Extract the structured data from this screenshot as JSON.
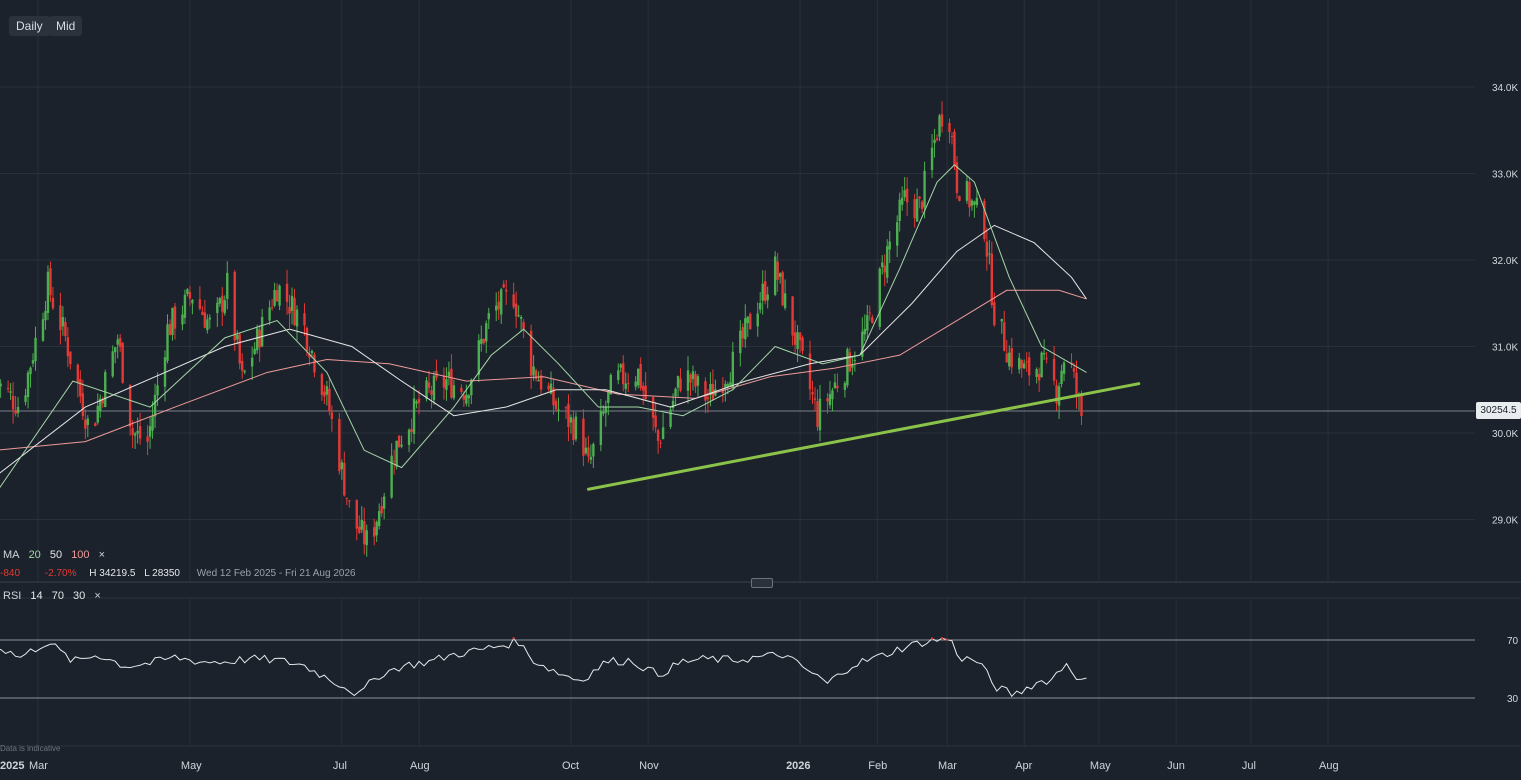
{
  "toolbar": {
    "interval": "Daily",
    "price_type": "Mid"
  },
  "legend": {
    "ma_label": "MA",
    "ma20": "20",
    "ma50": "50",
    "ma100": "100",
    "close": "×",
    "change": "-840",
    "change_pct": "-2.70%",
    "high": "H 34219.5",
    "low": "L 28350",
    "range": "Wed 12 Feb 2025 - Fri 21 Aug 2026"
  },
  "rsi_legend": {
    "label": "RSI",
    "period": "14",
    "upper": "70",
    "lower": "30",
    "close": "×"
  },
  "last_price": "30254.5",
  "disclaimer": "Data is indicative",
  "colors": {
    "up": "#4caf50",
    "down": "#e53935",
    "ma20": "#a5d6a7",
    "ma50": "#e6e6e6",
    "ma100": "#ef9a9a",
    "trendline": "#8bc34a",
    "background": "#1b222b"
  },
  "chart_data": {
    "type": "candlestick",
    "y_ticks": [
      "34.0K",
      "33.0K",
      "32.0K",
      "31.0K",
      "30.0K",
      "29.0K"
    ],
    "y_tick_values": [
      34000,
      33000,
      32000,
      31000,
      30000,
      29000
    ],
    "ylim": [
      28000,
      34950
    ],
    "x_ticks": [
      {
        "label": "2025",
        "date": "2025-02-12",
        "bold": true
      },
      {
        "label": "Mar",
        "date": "2025-03-01"
      },
      {
        "label": "May",
        "date": "2025-05-01"
      },
      {
        "label": "Jul",
        "date": "2025-07-01"
      },
      {
        "label": "Aug",
        "date": "2025-08-01"
      },
      {
        "label": "Oct",
        "date": "2025-10-01"
      },
      {
        "label": "Nov",
        "date": "2025-11-01"
      },
      {
        "label": "2026",
        "date": "2026-01-01",
        "bold": true
      },
      {
        "label": "Feb",
        "date": "2026-02-01"
      },
      {
        "label": "Mar",
        "date": "2026-03-01"
      },
      {
        "label": "Apr",
        "date": "2026-04-01"
      },
      {
        "label": "May",
        "date": "2026-05-01"
      },
      {
        "label": "Jun",
        "date": "2026-06-01"
      },
      {
        "label": "Jul",
        "date": "2026-07-01"
      },
      {
        "label": "Aug",
        "date": "2026-08-01"
      }
    ],
    "price_path": [
      [
        "2025-02-12",
        30600
      ],
      [
        "2025-02-22",
        30300
      ],
      [
        "2025-03-05",
        31700
      ],
      [
        "2025-03-12",
        31100
      ],
      [
        "2025-03-22",
        30000
      ],
      [
        "2025-04-02",
        31100
      ],
      [
        "2025-04-08",
        30000
      ],
      [
        "2025-04-14",
        29900
      ],
      [
        "2025-04-22",
        31200
      ],
      [
        "2025-05-02",
        31600
      ],
      [
        "2025-05-10",
        31200
      ],
      [
        "2025-05-16",
        31700
      ],
      [
        "2025-05-22",
        30600
      ],
      [
        "2025-06-05",
        31700
      ],
      [
        "2025-06-15",
        31300
      ],
      [
        "2025-06-25",
        30400
      ],
      [
        "2025-07-05",
        29000
      ],
      [
        "2025-07-12",
        28700
      ],
      [
        "2025-07-22",
        29800
      ],
      [
        "2025-08-02",
        30400
      ],
      [
        "2025-08-12",
        30600
      ],
      [
        "2025-08-20",
        30500
      ],
      [
        "2025-08-30",
        31400
      ],
      [
        "2025-09-08",
        31600
      ],
      [
        "2025-09-15",
        30800
      ],
      [
        "2025-09-25",
        30300
      ],
      [
        "2025-10-05",
        30000
      ],
      [
        "2025-10-08",
        29600
      ],
      [
        "2025-10-18",
        30600
      ],
      [
        "2025-10-28",
        30700
      ],
      [
        "2025-11-05",
        29900
      ],
      [
        "2025-11-15",
        30700
      ],
      [
        "2025-11-25",
        30400
      ],
      [
        "2025-12-05",
        30800
      ],
      [
        "2025-12-15",
        31500
      ],
      [
        "2025-12-22",
        31900
      ],
      [
        "2026-01-02",
        30800
      ],
      [
        "2026-01-08",
        30200
      ],
      [
        "2026-01-18",
        30700
      ],
      [
        "2026-01-28",
        31200
      ],
      [
        "2026-02-05",
        32100
      ],
      [
        "2026-02-12",
        32700
      ],
      [
        "2026-02-18",
        32600
      ],
      [
        "2026-02-25",
        33500
      ],
      [
        "2026-03-01",
        33900
      ],
      [
        "2026-03-05",
        32900
      ],
      [
        "2026-03-10",
        32700
      ],
      [
        "2026-03-16",
        32400
      ],
      [
        "2026-03-20",
        31400
      ],
      [
        "2026-03-26",
        30900
      ],
      [
        "2026-04-02",
        30700
      ],
      [
        "2026-04-08",
        30800
      ],
      [
        "2026-04-14",
        30500
      ],
      [
        "2026-04-18",
        31000
      ],
      [
        "2026-04-24",
        30200
      ],
      [
        "2026-04-26",
        30254.5
      ]
    ],
    "ma20": [
      [
        "2025-02-12",
        29300
      ],
      [
        "2025-03-15",
        30600
      ],
      [
        "2025-04-15",
        30300
      ],
      [
        "2025-05-15",
        31100
      ],
      [
        "2025-06-05",
        31300
      ],
      [
        "2025-06-25",
        30700
      ],
      [
        "2025-07-10",
        29800
      ],
      [
        "2025-07-25",
        29600
      ],
      [
        "2025-08-15",
        30300
      ],
      [
        "2025-08-30",
        30900
      ],
      [
        "2025-09-12",
        31200
      ],
      [
        "2025-09-26",
        30800
      ],
      [
        "2025-10-12",
        30300
      ],
      [
        "2025-10-28",
        30300
      ],
      [
        "2025-11-15",
        30200
      ],
      [
        "2025-12-05",
        30500
      ],
      [
        "2025-12-22",
        31000
      ],
      [
        "2026-01-10",
        30800
      ],
      [
        "2026-01-25",
        30900
      ],
      [
        "2026-02-10",
        31900
      ],
      [
        "2026-02-25",
        32900
      ],
      [
        "2026-03-04",
        33100
      ],
      [
        "2026-03-12",
        32900
      ],
      [
        "2026-03-26",
        31800
      ],
      [
        "2026-04-08",
        31000
      ],
      [
        "2026-04-20",
        30800
      ],
      [
        "2026-04-26",
        30700
      ]
    ],
    "ma50": [
      [
        "2025-02-12",
        29500
      ],
      [
        "2025-03-20",
        30300
      ],
      [
        "2025-05-15",
        31000
      ],
      [
        "2025-06-10",
        31200
      ],
      [
        "2025-07-05",
        31000
      ],
      [
        "2025-07-25",
        30600
      ],
      [
        "2025-08-15",
        30200
      ],
      [
        "2025-09-05",
        30300
      ],
      [
        "2025-09-25",
        30500
      ],
      [
        "2025-10-15",
        30500
      ],
      [
        "2025-11-10",
        30300
      ],
      [
        "2025-12-10",
        30600
      ],
      [
        "2026-01-05",
        30800
      ],
      [
        "2026-01-25",
        30900
      ],
      [
        "2026-02-15",
        31500
      ],
      [
        "2026-03-05",
        32100
      ],
      [
        "2026-03-20",
        32400
      ],
      [
        "2026-04-05",
        32200
      ],
      [
        "2026-04-20",
        31800
      ],
      [
        "2026-04-26",
        31550
      ]
    ],
    "ma100": [
      [
        "2025-02-12",
        29800
      ],
      [
        "2025-03-20",
        29900
      ],
      [
        "2025-04-25",
        30300
      ],
      [
        "2025-06-01",
        30700
      ],
      [
        "2025-06-25",
        30850
      ],
      [
        "2025-07-20",
        30800
      ],
      [
        "2025-08-20",
        30600
      ],
      [
        "2025-09-20",
        30650
      ],
      [
        "2025-10-20",
        30450
      ],
      [
        "2025-11-20",
        30400
      ],
      [
        "2025-12-20",
        30650
      ],
      [
        "2026-01-15",
        30750
      ],
      [
        "2026-02-10",
        30900
      ],
      [
        "2026-03-05",
        31300
      ],
      [
        "2026-03-25",
        31650
      ],
      [
        "2026-04-15",
        31650
      ],
      [
        "2026-04-26",
        31550
      ]
    ],
    "trendline": [
      [
        "2025-10-08",
        29350
      ],
      [
        "2026-05-17",
        30570
      ]
    ],
    "rsi": {
      "ylim": [
        0,
        100
      ],
      "levels": [
        70,
        30
      ],
      "tick_labels": [
        "70",
        "30"
      ],
      "points": [
        [
          "2025-02-12",
          66
        ],
        [
          "2025-02-22",
          58
        ],
        [
          "2025-03-05",
          69
        ],
        [
          "2025-03-15",
          55
        ],
        [
          "2025-03-25",
          60
        ],
        [
          "2025-04-05",
          52
        ],
        [
          "2025-04-15",
          54
        ],
        [
          "2025-04-25",
          58
        ],
        [
          "2025-05-05",
          55
        ],
        [
          "2025-05-15",
          55
        ],
        [
          "2025-05-25",
          57
        ],
        [
          "2025-06-05",
          56
        ],
        [
          "2025-06-15",
          53
        ],
        [
          "2025-06-25",
          44
        ],
        [
          "2025-07-02",
          38
        ],
        [
          "2025-07-08",
          32
        ],
        [
          "2025-07-15",
          45
        ],
        [
          "2025-07-25",
          52
        ],
        [
          "2025-08-05",
          55
        ],
        [
          "2025-08-15",
          60
        ],
        [
          "2025-08-25",
          63
        ],
        [
          "2025-09-05",
          67
        ],
        [
          "2025-09-10",
          69
        ],
        [
          "2025-09-15",
          57
        ],
        [
          "2025-09-25",
          48
        ],
        [
          "2025-10-05",
          42
        ],
        [
          "2025-10-15",
          55
        ],
        [
          "2025-10-25",
          56
        ],
        [
          "2025-11-05",
          46
        ],
        [
          "2025-11-15",
          55
        ],
        [
          "2025-11-25",
          57
        ],
        [
          "2025-12-05",
          56
        ],
        [
          "2025-12-15",
          58
        ],
        [
          "2025-12-25",
          60
        ],
        [
          "2026-01-05",
          48
        ],
        [
          "2026-01-12",
          40
        ],
        [
          "2026-01-22",
          53
        ],
        [
          "2026-02-01",
          58
        ],
        [
          "2026-02-10",
          64
        ],
        [
          "2026-02-18",
          68
        ],
        [
          "2026-02-25",
          70
        ],
        [
          "2026-03-02",
          71
        ],
        [
          "2026-03-06",
          58
        ],
        [
          "2026-03-14",
          55
        ],
        [
          "2026-03-20",
          38
        ],
        [
          "2026-03-28",
          32
        ],
        [
          "2026-04-05",
          40
        ],
        [
          "2026-04-12",
          43
        ],
        [
          "2026-04-18",
          54
        ],
        [
          "2026-04-24",
          41
        ],
        [
          "2026-04-26",
          43
        ]
      ]
    }
  }
}
